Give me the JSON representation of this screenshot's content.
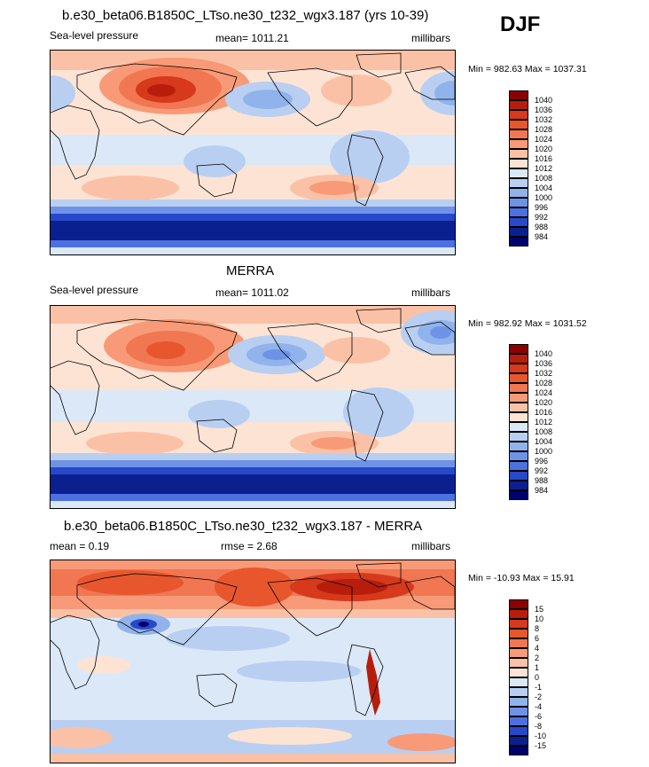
{
  "season": "DJF",
  "panels": [
    {
      "id": "model",
      "title": "b.e30_beta06.B1850C_LTso.ne30_t232_wgx3.187 (yrs 10-39)",
      "left_label": "Sea-level pressure",
      "center_label": "mean= 1011.21",
      "right_label": "millibars",
      "minmax": "Min = 982.63 Max = 1037.31"
    },
    {
      "id": "obs",
      "title": "MERRA",
      "left_label": "Sea-level pressure",
      "center_label": "mean= 1011.02",
      "right_label": "millibars",
      "minmax": "Min = 982.92 Max = 1031.52"
    },
    {
      "id": "diff",
      "title": "b.e30_beta06.B1850C_LTso.ne30_t232_wgx3.187 - MERRA",
      "left_label": "mean =   0.19",
      "center_label": "rmse =   2.68",
      "right_label": "millibars",
      "minmax": "Min = -10.93 Max =  15.91"
    }
  ],
  "colorbars": {
    "pressure": {
      "labels": [
        "1040",
        "1036",
        "1032",
        "1028",
        "1024",
        "1020",
        "1016",
        "1012",
        "1008",
        "1004",
        "1000",
        "996",
        "992",
        "988",
        "984"
      ],
      "colors": [
        "#8b0000",
        "#b81d0c",
        "#d6391b",
        "#e8562e",
        "#f07752",
        "#f89a77",
        "#fbc1a6",
        "#fde3d4",
        "#dbe8f8",
        "#b8cff2",
        "#91b3ec",
        "#6e93e6",
        "#4d70e0",
        "#2748c8",
        "#0b208f",
        "#00006e"
      ]
    },
    "difference": {
      "labels": [
        "15",
        "10",
        "8",
        "6",
        "4",
        "2",
        "1",
        "0",
        "-1",
        "-2",
        "-4",
        "-6",
        "-8",
        "-10",
        "-15"
      ],
      "colors": [
        "#8b0000",
        "#b81d0c",
        "#d6391b",
        "#e8562e",
        "#f07752",
        "#f89a77",
        "#fbc1a6",
        "#fde3d4",
        "#dbe8f8",
        "#b8cff2",
        "#91b3ec",
        "#6e93e6",
        "#4d70e0",
        "#2748c8",
        "#0b208f",
        "#00006e"
      ]
    }
  }
}
